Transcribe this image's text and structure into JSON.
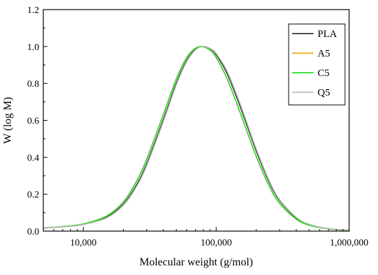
{
  "chart_data": {
    "type": "line",
    "title": "",
    "xlabel": "Molecular weight (g/mol)",
    "ylabel": "W (log M)",
    "x_scale": "log",
    "xlim": [
      5000,
      1000000
    ],
    "ylim": [
      0,
      1.2
    ],
    "xticks": [
      10000,
      100000,
      1000000
    ],
    "xtick_labels": [
      "10,000",
      "100,000",
      "1,000,000"
    ],
    "yticks": [
      0,
      0.2,
      0.4,
      0.6,
      0.8,
      1.0,
      1.2
    ],
    "ytick_labels": [
      "0.0",
      "0.2",
      "0.4",
      "0.6",
      "0.8",
      "1.0",
      "1.2"
    ],
    "grid": false,
    "legend_position": "top-right",
    "x": [
      5000,
      7000,
      10000,
      15000,
      20000,
      25000,
      30000,
      40000,
      50000,
      60000,
      70000,
      80000,
      90000,
      100000,
      120000,
      150000,
      200000,
      250000,
      300000,
      400000,
      500000,
      700000,
      1000000
    ],
    "series": [
      {
        "name": "PLA",
        "color": "#333333",
        "values": [
          0.016,
          0.024,
          0.037,
          0.076,
          0.146,
          0.247,
          0.366,
          0.605,
          0.8,
          0.925,
          0.985,
          1.0,
          0.988,
          0.955,
          0.857,
          0.683,
          0.434,
          0.266,
          0.165,
          0.072,
          0.036,
          0.013,
          0.005
        ]
      },
      {
        "name": "A5",
        "color": "#f0a30a",
        "values": [
          0.017,
          0.025,
          0.039,
          0.082,
          0.158,
          0.266,
          0.39,
          0.632,
          0.823,
          0.94,
          0.991,
          0.998,
          0.979,
          0.94,
          0.83,
          0.65,
          0.405,
          0.245,
          0.15,
          0.065,
          0.032,
          0.012,
          0.004
        ]
      },
      {
        "name": "C5",
        "color": "#22dd22",
        "values": [
          0.017,
          0.025,
          0.039,
          0.082,
          0.158,
          0.266,
          0.39,
          0.632,
          0.823,
          0.94,
          0.991,
          0.998,
          0.979,
          0.94,
          0.83,
          0.65,
          0.405,
          0.245,
          0.15,
          0.065,
          0.032,
          0.012,
          0.004
        ]
      },
      {
        "name": "Q5",
        "color": "#bbbbbb",
        "values": [
          0.016,
          0.023,
          0.035,
          0.072,
          0.14,
          0.238,
          0.355,
          0.593,
          0.79,
          0.918,
          0.982,
          0.999,
          0.99,
          0.962,
          0.87,
          0.698,
          0.446,
          0.275,
          0.17,
          0.075,
          0.037,
          0.013,
          0.005
        ]
      }
    ]
  }
}
